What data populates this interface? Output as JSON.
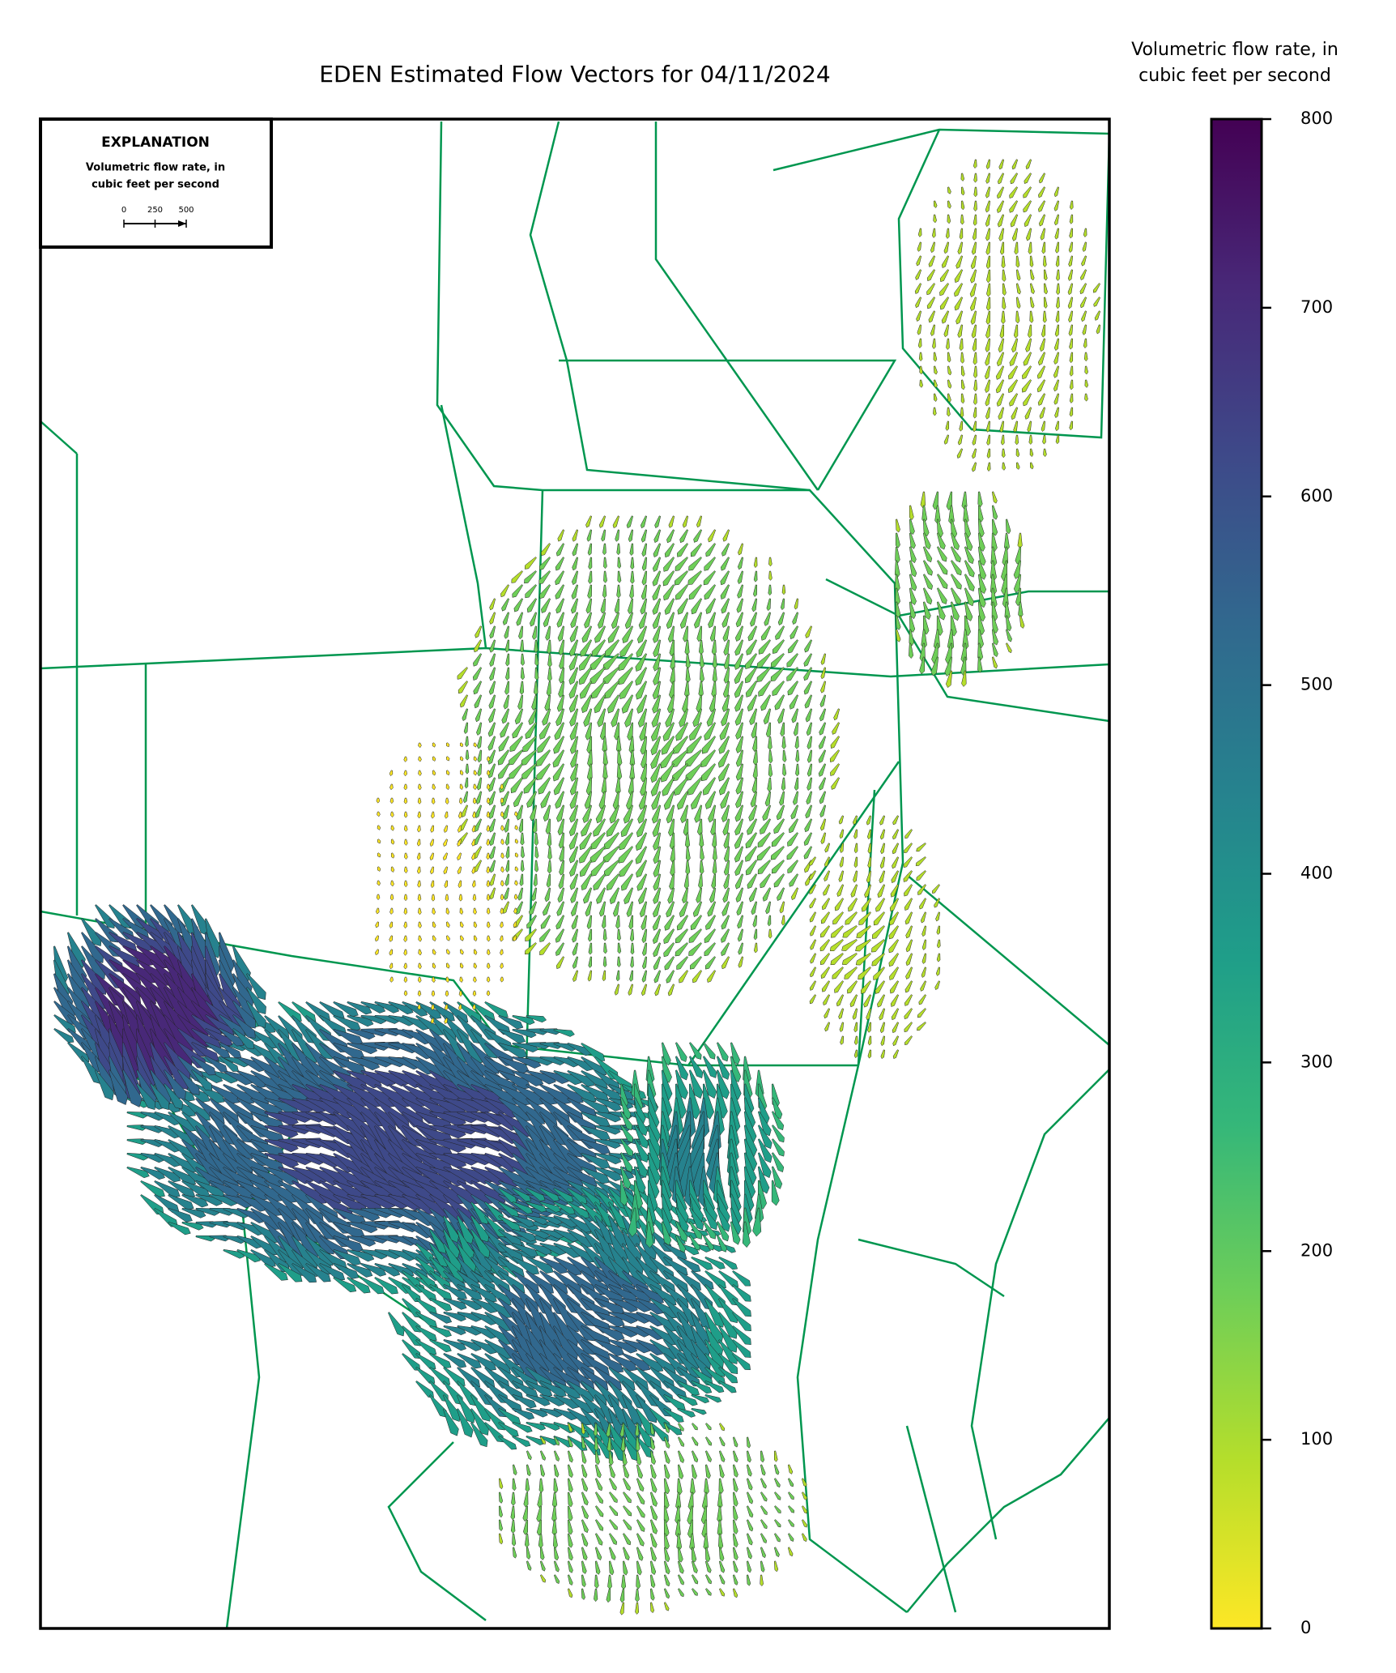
{
  "title": "EDEN Estimated Flow Vectors for 04/11/2024",
  "colorbar": {
    "label": [
      "Volumetric flow rate, in",
      "cubic feet per second"
    ],
    "lim": [
      0,
      800
    ],
    "ticks": [
      0,
      100,
      200,
      300,
      400,
      500,
      600,
      700,
      800
    ],
    "colormap": [
      "#fde725",
      "#b5de2b",
      "#6ece58",
      "#35b779",
      "#1f9e89",
      "#26828e",
      "#31688e",
      "#3e4989",
      "#482878",
      "#440154"
    ]
  },
  "explanation": {
    "title": "EXPLANATION",
    "label": [
      "Volumetric flow rate, in",
      "cubic feet per second"
    ],
    "scale_ticks": [
      0,
      250,
      500
    ]
  }
}
